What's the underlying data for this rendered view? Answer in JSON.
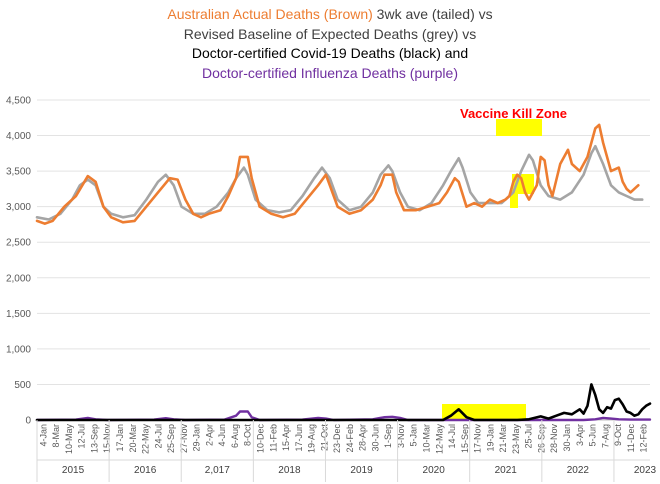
{
  "chart_data": {
    "type": "line",
    "title": {
      "line1_a": "Australian Actual Deaths (Brown)",
      "line1_b": " 3wk ave (tailed) vs",
      "line2": "Revised Baseline of Expected Deaths (grey) vs",
      "line3": "Doctor-certified Covid-19 Deaths (black) and",
      "line4": "Doctor-certified Influenza Deaths (purple)"
    },
    "annotation": "Vaccine Kill Zone",
    "ylim": [
      0,
      4500
    ],
    "yticks": [
      "0",
      "500",
      "1,000",
      "1,500",
      "2,000",
      "2,500",
      "3,000",
      "3,500",
      "4,000",
      "4,500"
    ],
    "grid": "horizontal",
    "x_date_ticks": [
      "4-Jan",
      "8-Mar",
      "10-May",
      "12-Jul",
      "13-Sep",
      "15-Nov",
      "17-Jan",
      "20-Mar",
      "22-May",
      "24-Jul",
      "25-Sep",
      "27-Nov",
      "29-Jan",
      "2-Apr",
      "4-Jun",
      "6-Aug",
      "8-Oct",
      "10-Dec",
      "11-Feb",
      "15-Apr",
      "17-Jun",
      "19-Aug",
      "21-Oct",
      "23-Dec",
      "24-Feb",
      "28-Apr",
      "30-Jun",
      "1-Sep",
      "3-Nov",
      "5-Jan",
      "10-Mar",
      "12-May",
      "14-Jul",
      "15-Sep",
      "17-Nov",
      "19-Jan",
      "21-Mar",
      "23-May",
      "25-Jul",
      "26-Sep",
      "28-Nov",
      "30-Jan",
      "3-Apr",
      "5-Jun",
      "7-Aug",
      "9-Oct",
      "11-Dec",
      "12-Feb"
    ],
    "x_years": [
      "2015",
      "2016",
      "2,017",
      "2018",
      "2019",
      "2020",
      "2021",
      "2022",
      "2023"
    ],
    "colors": {
      "actual": "#ED7D31",
      "baseline": "#A5A5A5",
      "covid": "#000000",
      "influenza": "#7030A0",
      "highlight": "#FFFF00",
      "annotation": "#FF0000"
    },
    "series": [
      {
        "name": "Australian Actual Deaths (Brown)",
        "key": "actual",
        "points": [
          [
            0,
            2800
          ],
          [
            2,
            2760
          ],
          [
            4,
            2800
          ],
          [
            7,
            3000
          ],
          [
            10,
            3150
          ],
          [
            13,
            3430
          ],
          [
            15,
            3350
          ],
          [
            17,
            3000
          ],
          [
            19,
            2850
          ],
          [
            22,
            2780
          ],
          [
            25,
            2800
          ],
          [
            28,
            3000
          ],
          [
            31,
            3200
          ],
          [
            34,
            3400
          ],
          [
            36,
            3380
          ],
          [
            38,
            3100
          ],
          [
            40,
            2900
          ],
          [
            42,
            2850
          ],
          [
            44,
            2900
          ],
          [
            47,
            2950
          ],
          [
            49,
            3150
          ],
          [
            51,
            3400
          ],
          [
            52,
            3700
          ],
          [
            54,
            3700
          ],
          [
            55,
            3400
          ],
          [
            57,
            3000
          ],
          [
            60,
            2900
          ],
          [
            63,
            2850
          ],
          [
            66,
            2900
          ],
          [
            69,
            3100
          ],
          [
            72,
            3300
          ],
          [
            74,
            3450
          ],
          [
            75,
            3300
          ],
          [
            77,
            3000
          ],
          [
            80,
            2900
          ],
          [
            83,
            2950
          ],
          [
            86,
            3100
          ],
          [
            88,
            3300
          ],
          [
            89,
            3450
          ],
          [
            91,
            3450
          ],
          [
            92,
            3200
          ],
          [
            94,
            2950
          ],
          [
            97,
            2950
          ],
          [
            100,
            3000
          ],
          [
            103,
            3050
          ],
          [
            105,
            3200
          ],
          [
            107,
            3400
          ],
          [
            108,
            3350
          ],
          [
            110,
            3000
          ],
          [
            112,
            3050
          ],
          [
            114,
            3000
          ],
          [
            116,
            3100
          ],
          [
            118,
            3050
          ],
          [
            120,
            3100
          ],
          [
            121,
            3150
          ],
          [
            122,
            3350
          ],
          [
            123,
            3450
          ],
          [
            124,
            3400
          ],
          [
            125,
            3200
          ],
          [
            126,
            3100
          ],
          [
            128,
            3300
          ],
          [
            129,
            3700
          ],
          [
            130,
            3650
          ],
          [
            131,
            3300
          ],
          [
            132,
            3150
          ],
          [
            134,
            3600
          ],
          [
            136,
            3800
          ],
          [
            137,
            3600
          ],
          [
            139,
            3500
          ],
          [
            141,
            3700
          ],
          [
            143,
            4100
          ],
          [
            144,
            4150
          ],
          [
            145,
            3900
          ],
          [
            147,
            3500
          ],
          [
            149,
            3550
          ],
          [
            150,
            3350
          ],
          [
            151,
            3250
          ],
          [
            152,
            3200
          ],
          [
            154,
            3300
          ]
        ]
      },
      {
        "name": "Revised Baseline of Expected Deaths (grey)",
        "key": "baseline",
        "points": [
          [
            0,
            2850
          ],
          [
            3,
            2820
          ],
          [
            6,
            2900
          ],
          [
            9,
            3100
          ],
          [
            11,
            3300
          ],
          [
            13,
            3380
          ],
          [
            15,
            3300
          ],
          [
            17,
            3000
          ],
          [
            19,
            2900
          ],
          [
            22,
            2850
          ],
          [
            25,
            2880
          ],
          [
            28,
            3100
          ],
          [
            31,
            3350
          ],
          [
            33,
            3450
          ],
          [
            35,
            3300
          ],
          [
            37,
            3000
          ],
          [
            40,
            2900
          ],
          [
            43,
            2900
          ],
          [
            46,
            3000
          ],
          [
            49,
            3200
          ],
          [
            51,
            3400
          ],
          [
            53,
            3550
          ],
          [
            54,
            3450
          ],
          [
            56,
            3100
          ],
          [
            59,
            2950
          ],
          [
            62,
            2920
          ],
          [
            65,
            2950
          ],
          [
            68,
            3150
          ],
          [
            71,
            3400
          ],
          [
            73,
            3550
          ],
          [
            75,
            3400
          ],
          [
            77,
            3100
          ],
          [
            80,
            2950
          ],
          [
            83,
            3000
          ],
          [
            86,
            3200
          ],
          [
            88,
            3450
          ],
          [
            90,
            3580
          ],
          [
            91,
            3500
          ],
          [
            93,
            3200
          ],
          [
            95,
            3000
          ],
          [
            98,
            2950
          ],
          [
            101,
            3050
          ],
          [
            104,
            3300
          ],
          [
            106,
            3500
          ],
          [
            108,
            3680
          ],
          [
            109,
            3550
          ],
          [
            111,
            3200
          ],
          [
            113,
            3050
          ],
          [
            116,
            3050
          ],
          [
            119,
            3050
          ],
          [
            122,
            3200
          ],
          [
            124,
            3500
          ],
          [
            126,
            3730
          ],
          [
            127,
            3650
          ],
          [
            129,
            3300
          ],
          [
            131,
            3150
          ],
          [
            134,
            3100
          ],
          [
            137,
            3200
          ],
          [
            140,
            3450
          ],
          [
            142,
            3750
          ],
          [
            143,
            3850
          ],
          [
            145,
            3600
          ],
          [
            147,
            3300
          ],
          [
            149,
            3200
          ],
          [
            151,
            3150
          ],
          [
            153,
            3100
          ],
          [
            155,
            3100
          ]
        ]
      },
      {
        "name": "Doctor-certified Covid-19 Deaths (black)",
        "key": "covid",
        "points": [
          [
            0,
            0
          ],
          [
            104,
            0
          ],
          [
            106,
            60
          ],
          [
            108,
            150
          ],
          [
            110,
            40
          ],
          [
            112,
            0
          ],
          [
            123,
            0
          ],
          [
            126,
            10
          ],
          [
            129,
            50
          ],
          [
            131,
            20
          ],
          [
            133,
            60
          ],
          [
            135,
            100
          ],
          [
            137,
            80
          ],
          [
            139,
            150
          ],
          [
            140,
            90
          ],
          [
            141,
            200
          ],
          [
            142,
            500
          ],
          [
            143,
            350
          ],
          [
            144,
            150
          ],
          [
            145,
            100
          ],
          [
            146,
            180
          ],
          [
            147,
            160
          ],
          [
            148,
            280
          ],
          [
            149,
            300
          ],
          [
            150,
            220
          ],
          [
            151,
            120
          ],
          [
            152,
            100
          ],
          [
            153,
            60
          ],
          [
            154,
            80
          ],
          [
            155,
            150
          ],
          [
            156,
            200
          ],
          [
            157,
            230
          ]
        ]
      },
      {
        "name": "Doctor-certified Influenza Deaths (purple)",
        "key": "influenza",
        "points": [
          [
            0,
            0
          ],
          [
            10,
            5
          ],
          [
            13,
            30
          ],
          [
            15,
            10
          ],
          [
            18,
            0
          ],
          [
            30,
            5
          ],
          [
            33,
            25
          ],
          [
            35,
            10
          ],
          [
            38,
            0
          ],
          [
            48,
            5
          ],
          [
            51,
            60
          ],
          [
            52,
            120
          ],
          [
            54,
            120
          ],
          [
            55,
            40
          ],
          [
            57,
            0
          ],
          [
            68,
            5
          ],
          [
            72,
            30
          ],
          [
            74,
            20
          ],
          [
            76,
            0
          ],
          [
            86,
            10
          ],
          [
            89,
            40
          ],
          [
            91,
            45
          ],
          [
            93,
            30
          ],
          [
            95,
            0
          ],
          [
            104,
            0
          ],
          [
            140,
            0
          ],
          [
            143,
            10
          ],
          [
            145,
            30
          ],
          [
            147,
            20
          ],
          [
            149,
            10
          ],
          [
            152,
            5
          ],
          [
            157,
            5
          ]
        ]
      }
    ]
  }
}
